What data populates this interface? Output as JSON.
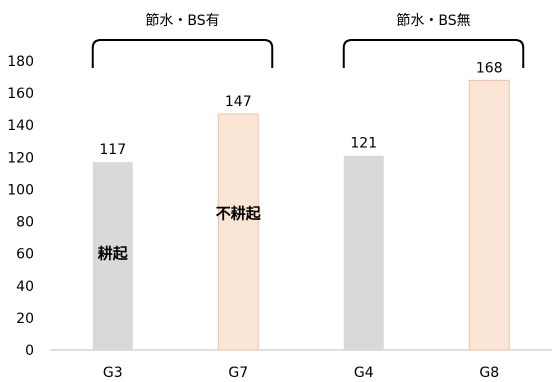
{
  "chart_data": {
    "type": "bar",
    "categories": [
      "G3",
      "G7",
      "G4",
      "G8"
    ],
    "values": [
      117,
      147,
      121,
      168
    ],
    "bar_colors": [
      "#D9D9D9",
      "#FBE5D6",
      "#D9D9D9",
      "#FBE5D6"
    ],
    "bar_border_color": "#E8B99A",
    "ylim": [
      0,
      180
    ],
    "yticks": [
      0,
      20,
      40,
      60,
      80,
      100,
      120,
      140,
      160,
      180
    ],
    "grid": false,
    "groups": [
      {
        "label": "節水・BS有",
        "categories": [
          "G3",
          "G7"
        ]
      },
      {
        "label": "節水・BS無",
        "categories": [
          "G4",
          "G8"
        ]
      }
    ],
    "annotations": [
      {
        "text": "耕起",
        "category": "G3",
        "value": 60
      },
      {
        "text": "不耕起",
        "category": "G7",
        "value": 85
      }
    ]
  }
}
